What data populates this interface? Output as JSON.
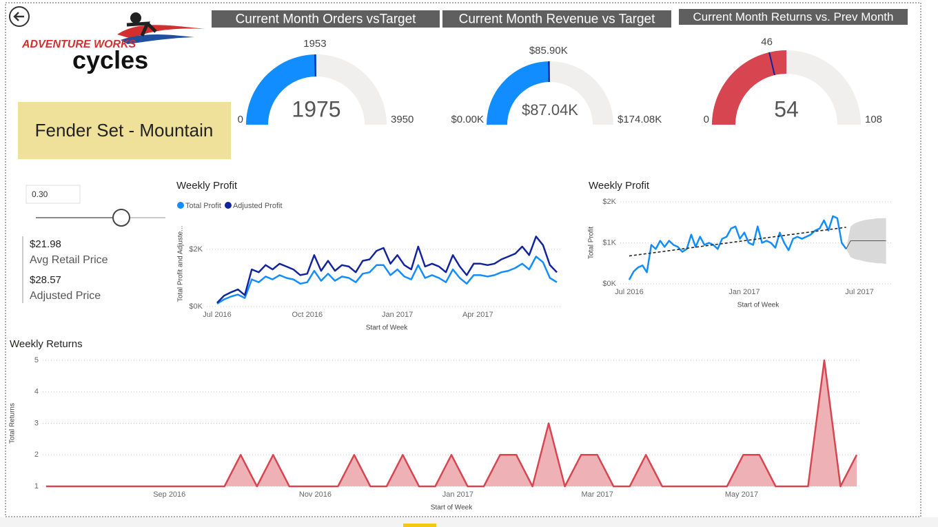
{
  "header": {
    "logo_top": "ADVENTURE WORKS",
    "logo_bottom": "cycles"
  },
  "product": "Fender Set - Mountain",
  "slider": {
    "value": "0.30"
  },
  "prices": [
    {
      "value": "$21.98",
      "label": "Avg Retail Price"
    },
    {
      "value": "$28.57",
      "label": "Adjusted Price"
    }
  ],
  "chart_data": [
    {
      "type": "gauge",
      "title": "Current Month Orders vsTarget",
      "value": 1975,
      "target": 1953,
      "min": 0,
      "max": 3950,
      "color": "#118dff",
      "track_color": "#f0efee",
      "target_color": "#12239e"
    },
    {
      "type": "gauge",
      "title": "Current Month Revenue vs Target",
      "value": {
        "value": 87040,
        "label": "$87.04K"
      },
      "target": {
        "value": 85900,
        "label": "$85.90K"
      },
      "min": {
        "value": 0,
        "label": "$0.00K"
      },
      "max": {
        "value": 174080,
        "label": "$174.08K"
      },
      "color": "#118dff",
      "track_color": "#f0efee",
      "target_color": "#12239e"
    },
    {
      "type": "gauge",
      "title": "Current Month Returns vs. Prev Month",
      "value": 54,
      "target": 46,
      "min": 0,
      "max": 108,
      "color": "#d64550",
      "track_color": "#f0efee",
      "target_color": "#12239e"
    },
    {
      "type": "line",
      "title": "Weekly Profit",
      "xlabel": "Start of Week",
      "ylabel": "Total Profit and Adjuste...",
      "series": [
        {
          "name": "Total Profit",
          "color": "#118dff",
          "values": [
            0.1,
            0.25,
            0.35,
            0.42,
            0.3,
            0.95,
            0.85,
            1.05,
            0.95,
            1.1,
            1.0,
            0.95,
            0.8,
            0.85,
            1.25,
            0.9,
            1.15,
            0.9,
            1.05,
            1.0,
            0.85,
            1.15,
            1.2,
            1.45,
            1.45,
            1.1,
            1.3,
            1.05,
            0.95,
            1.45,
            1.0,
            1.1,
            1.0,
            0.85,
            1.3,
            1.0,
            0.8,
            1.1,
            1.1,
            1.05,
            1.1,
            1.2,
            1.25,
            1.35,
            1.5,
            1.3,
            1.75,
            1.55,
            1.0,
            0.85
          ]
        },
        {
          "name": "Adjusted Profit",
          "color": "#12239e",
          "values": [
            0.13,
            0.38,
            0.5,
            0.6,
            0.4,
            1.3,
            1.2,
            1.45,
            1.3,
            1.5,
            1.4,
            1.3,
            1.1,
            1.15,
            1.8,
            1.25,
            1.6,
            1.25,
            1.45,
            1.4,
            1.2,
            1.6,
            1.65,
            1.95,
            2.05,
            1.5,
            1.8,
            1.45,
            1.3,
            2.1,
            1.4,
            1.5,
            1.4,
            1.2,
            1.8,
            1.4,
            1.1,
            1.5,
            1.5,
            1.45,
            1.5,
            1.65,
            1.75,
            1.85,
            2.1,
            1.8,
            2.45,
            2.15,
            1.45,
            1.2
          ]
        }
      ],
      "xlim": [
        0,
        49
      ],
      "xticks": [
        {
          "value": 0,
          "label": "Jul 2016"
        },
        {
          "value": 13,
          "label": "Oct 2016"
        },
        {
          "value": 26,
          "label": "Jan 2017"
        },
        {
          "value": 37.6,
          "label": "Apr 2017"
        }
      ],
      "ylim": [
        0,
        3
      ],
      "yticks": [
        {
          "value": 0,
          "label": "$0K"
        },
        {
          "value": 2,
          "label": "$2K"
        }
      ],
      "grid": true,
      "legend": "top-left"
    },
    {
      "type": "forecast",
      "title": "Weekly Profit",
      "xlabel": "Start of Week",
      "ylabel": "Total Profit",
      "series": [
        {
          "color": "#118dff",
          "values": [
            0.1,
            0.3,
            0.4,
            0.45,
            0.28,
            0.95,
            0.85,
            1.05,
            0.9,
            1.05,
            0.95,
            0.9,
            0.78,
            0.85,
            1.2,
            0.9,
            1.15,
            0.95,
            1.0,
            0.95,
            0.85,
            1.1,
            1.15,
            1.35,
            1.4,
            1.1,
            1.25,
            1.0,
            0.95,
            1.4,
            1.0,
            1.05,
            1.0,
            0.88,
            1.25,
            1.0,
            0.82,
            1.1,
            1.15,
            1.1,
            1.15,
            1.2,
            1.3,
            1.35,
            1.55,
            1.3,
            1.65,
            1.6,
            1.0,
            0.85
          ]
        }
      ],
      "trendline": [
        0.68,
        1.38
      ],
      "forecast": {
        "color": "#999999",
        "band_color": "#d9d9d9",
        "values": [
          0.85,
          1.05,
          1.05,
          1.05,
          1.05,
          1.05,
          1.05,
          1.05,
          1.05,
          1.05
        ],
        "lower": [
          0.85,
          0.65,
          0.6,
          0.58,
          0.55,
          0.53,
          0.52,
          0.5,
          0.5,
          0.48
        ],
        "upper": [
          0.85,
          1.4,
          1.48,
          1.52,
          1.55,
          1.57,
          1.58,
          1.6,
          1.6,
          1.6
        ]
      },
      "xlim": [
        -1,
        59
      ],
      "xticks": [
        {
          "value": 0,
          "label": "Jul 2016"
        },
        {
          "value": 26,
          "label": "Jan 2017"
        },
        {
          "value": 52,
          "label": "Jul 2017"
        }
      ],
      "ylim": [
        0,
        2
      ],
      "yticks": [
        {
          "value": 0,
          "label": "$0K"
        },
        {
          "value": 1,
          "label": "$1K"
        },
        {
          "value": 2,
          "label": "$2K"
        }
      ],
      "grid": true
    },
    {
      "type": "area",
      "title": "Weekly Returns",
      "xlabel": "Start of Week",
      "ylabel": "Total Returns",
      "color": "#d64550",
      "fill": "#eeb1b6",
      "values": [
        1,
        1,
        1,
        1,
        1,
        1,
        1,
        1,
        1,
        1,
        1,
        1,
        2,
        1,
        2,
        1,
        1,
        1,
        1,
        2,
        1,
        1,
        2,
        1,
        1,
        2,
        1,
        1,
        2,
        2,
        1,
        3,
        1,
        2,
        2,
        1,
        1,
        2,
        1,
        1,
        1,
        1,
        1,
        2,
        2,
        1,
        1,
        1,
        5,
        1,
        2
      ],
      "xlim": [
        0,
        50
      ],
      "xticks": [
        {
          "value": 7.6,
          "label": "Sep 2016"
        },
        {
          "value": 16.6,
          "label": "Nov 2016"
        },
        {
          "value": 25.4,
          "label": "Jan 2017"
        },
        {
          "value": 34,
          "label": "Mar 2017"
        },
        {
          "value": 42.9,
          "label": "May 2017"
        }
      ],
      "ylim": [
        1,
        5
      ],
      "yticks": [
        1,
        2,
        3,
        4,
        5
      ],
      "grid": true
    }
  ]
}
